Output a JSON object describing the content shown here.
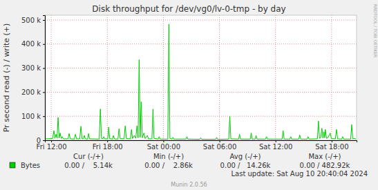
{
  "chart_data": {
    "type": "line",
    "title": "Disk throughput for /dev/vg0/lv-0-tmp - by day",
    "y_label": "Pr second read (-) / write (+)",
    "watermark": "RRDTOOL / TOBI OETIKER",
    "footer": "Last update: Sat Aug 10 20:40:04 2024",
    "credit": "Munin 2.0.56",
    "grid": true,
    "legend": "bottom",
    "stats": {
      "headers": [
        "Cur (-/+)",
        "Min (-/+)",
        "Avg (-/+)",
        "Max (-/+)"
      ],
      "values": [
        "0.00 /    5.14k",
        "0.00 /    2.86k",
        "0.00 /   14.26k",
        "0.00 / 482.92k"
      ]
    },
    "xlim": [
      11.33,
      44.67
    ],
    "xticks": [
      {
        "value": 12,
        "label": "Fri 12:00"
      },
      {
        "value": 18,
        "label": "Fri 18:00"
      },
      {
        "value": 24,
        "label": "Sat 00:00"
      },
      {
        "value": 30,
        "label": "Sat 06:00"
      },
      {
        "value": 36,
        "label": "Sat 12:00"
      },
      {
        "value": 42,
        "label": "Sat 18:00"
      }
    ],
    "ylim": [
      0,
      520000
    ],
    "yticks": [
      0,
      {
        "value": 100000,
        "label": "100 k"
      },
      {
        "value": 200000,
        "label": "200 k"
      },
      {
        "value": 300000,
        "label": "300 k"
      },
      {
        "value": 400000,
        "label": "400 k"
      },
      {
        "value": 500000,
        "label": "500 k"
      }
    ],
    "x": [
      11.4,
      12.15,
      12.29,
      12.4,
      12.52,
      12.63,
      12.74,
      12.85,
      12.96,
      13.07,
      13.18,
      13.3,
      13.8,
      13.92,
      14.04,
      14.47,
      14.59,
      14.71,
      15.06,
      15.18,
      15.3,
      15.45,
      15.55,
      15.65,
      15.9,
      16.0,
      16.1,
      17.14,
      17.26,
      17.38,
      17.53,
      17.63,
      17.73,
      18.05,
      18.15,
      18.26,
      18.56,
      18.66,
      18.76,
      19.14,
      19.26,
      19.38,
      19.8,
      19.92,
      20.04,
      20.47,
      20.59,
      20.7,
      20.89,
      21.05,
      21.18,
      21.3,
      21.41,
      21.52,
      21.63,
      21.75,
      21.92,
      22.05,
      22.29,
      22.4,
      22.78,
      22.89,
      23.0,
      23.45,
      23.55,
      23.65,
      24.48,
      24.59,
      24.7,
      24.93,
      25.03,
      25.13,
      26.42,
      26.52,
      26.62,
      27.9,
      28.0,
      28.1,
      29.6,
      29.7,
      29.8,
      31.0,
      31.11,
      31.22,
      32.05,
      32.15,
      32.25,
      33.3,
      33.4,
      33.5,
      33.82,
      33.92,
      34.02,
      34.93,
      35.03,
      35.13,
      36.7,
      36.81,
      36.92,
      37.53,
      37.63,
      37.73,
      38.49,
      38.59,
      38.69,
      39.38,
      39.48,
      39.58,
      40.48,
      40.59,
      40.7,
      40.83,
      40.96,
      41.07,
      41.18,
      41.26,
      41.33,
      41.45,
      41.6,
      41.85,
      41.97,
      42.4,
      42.52,
      42.64,
      43.08,
      43.18,
      43.28,
      44.04,
      44.15,
      44.26,
      44.44,
      44.6
    ],
    "series": [
      {
        "name": "Bytes",
        "color": "#00cc00",
        "values": [
          6000,
          7000,
          40000,
          8000,
          25000,
          8000,
          95000,
          9000,
          30000,
          7000,
          15000,
          6000,
          6000,
          28000,
          6000,
          5000,
          25000,
          6000,
          6000,
          58000,
          7000,
          6000,
          20000,
          6000,
          5000,
          28000,
          6000,
          5000,
          130000,
          8000,
          6000,
          15000,
          6000,
          6000,
          55000,
          7000,
          5000,
          20000,
          6000,
          5000,
          48000,
          7000,
          6000,
          60000,
          7000,
          6000,
          45000,
          7000,
          20000,
          8000,
          60000,
          10000,
          335000,
          12000,
          160000,
          10000,
          30000,
          7000,
          20000,
          6000,
          6000,
          130000,
          8000,
          5000,
          15000,
          5000,
          5000,
          482920,
          8000,
          5000,
          12000,
          5000,
          5000,
          15000,
          5000,
          4000,
          10000,
          4000,
          4000,
          12000,
          4000,
          5000,
          100000,
          6000,
          5000,
          25000,
          5000,
          5000,
          30000,
          5000,
          5000,
          20000,
          5000,
          5000,
          15000,
          5000,
          5000,
          40000,
          5000,
          5000,
          15000,
          5000,
          5000,
          22000,
          5000,
          5000,
          15000,
          5000,
          6000,
          80000,
          8000,
          10000,
          50000,
          9000,
          35000,
          10000,
          45000,
          8000,
          10000,
          30000,
          7000,
          6000,
          45000,
          6000,
          5000,
          15000,
          5000,
          5000,
          65000,
          6000,
          8000,
          5000
        ]
      }
    ]
  }
}
